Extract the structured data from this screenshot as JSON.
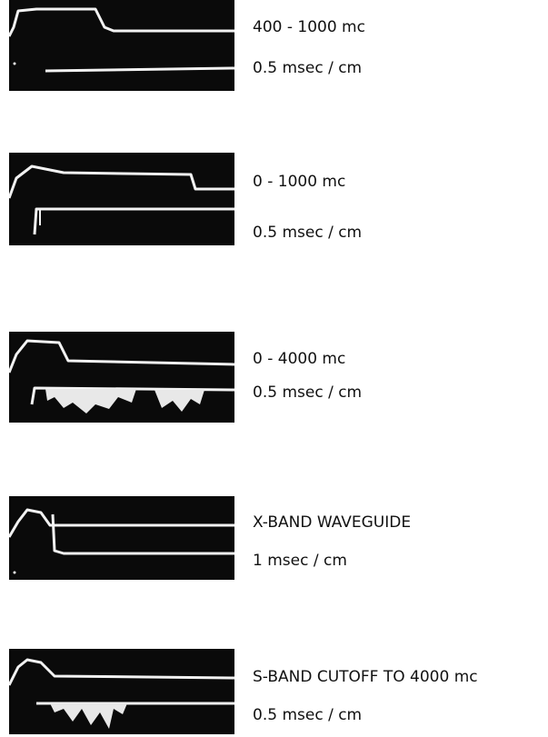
{
  "panels": [
    {
      "label": "400 - 1000 mc",
      "sweep": "0.5 msec / cm"
    },
    {
      "label": "0 - 1000 mc",
      "sweep": "0.5 msec / cm"
    },
    {
      "label": "0 - 4000 mc",
      "sweep": "0.5 msec / cm"
    },
    {
      "label": "X-BAND WAVEGUIDE",
      "sweep": "1 msec / cm"
    },
    {
      "label": "S-BAND CUTOFF TO 4000 mc",
      "sweep": "0.5 msec / cm"
    }
  ]
}
